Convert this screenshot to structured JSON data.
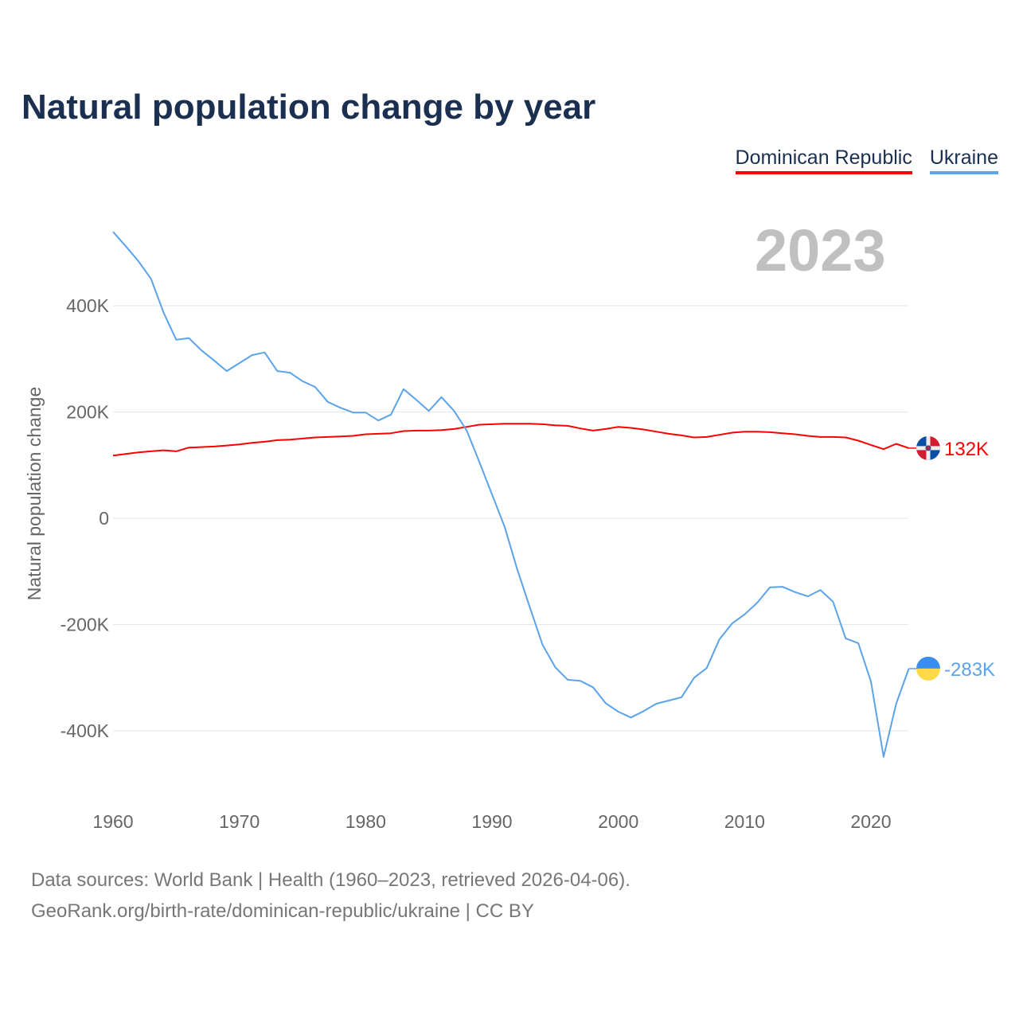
{
  "title": "Natural population change by year",
  "legend": [
    "Dominican Republic",
    "Ukraine"
  ],
  "current_year": "2023",
  "footer": {
    "line1": "Data sources: World Bank | Health (1960–2023, retrieved 2026-04-06).",
    "line2": "GeoRank.org/birth-rate/dominican-republic/ukraine | CC BY"
  },
  "chart_data": {
    "type": "line",
    "title": "Natural population change by year",
    "xlabel": "",
    "ylabel": "Natural population change",
    "xlim": [
      1960,
      2023
    ],
    "ylim": [
      -500000,
      560000
    ],
    "yticks": [
      400000,
      200000,
      0,
      -200000,
      -400000
    ],
    "ytick_labels": [
      "400K",
      "200K",
      "0",
      "-200K",
      "-400K"
    ],
    "xticks": [
      1960,
      1970,
      1980,
      1990,
      2000,
      2010,
      2020
    ],
    "xtick_labels": [
      "1960",
      "1970",
      "1980",
      "1990",
      "2000",
      "2010",
      "2020"
    ],
    "grid": true,
    "legend_position": "top-right",
    "x": [
      1960,
      1961,
      1962,
      1963,
      1964,
      1965,
      1966,
      1967,
      1968,
      1969,
      1970,
      1971,
      1972,
      1973,
      1974,
      1975,
      1976,
      1977,
      1978,
      1979,
      1980,
      1981,
      1982,
      1983,
      1984,
      1985,
      1986,
      1987,
      1988,
      1989,
      1990,
      1991,
      1992,
      1993,
      1994,
      1995,
      1996,
      1997,
      1998,
      1999,
      2000,
      2001,
      2002,
      2003,
      2004,
      2005,
      2006,
      2007,
      2008,
      2009,
      2010,
      2011,
      2012,
      2013,
      2014,
      2015,
      2016,
      2017,
      2018,
      2019,
      2020,
      2021,
      2022,
      2023
    ],
    "series": [
      {
        "name": "Dominican Republic",
        "color": "#ff0000",
        "end_label": "132K",
        "flag": "dominican-republic-flag",
        "values": [
          118000,
          121000,
          124000,
          126000,
          128000,
          126000,
          133000,
          134000,
          135000,
          137000,
          139000,
          142000,
          144000,
          147000,
          148000,
          150000,
          152000,
          153000,
          154000,
          155000,
          158000,
          159000,
          160000,
          164000,
          165000,
          165000,
          166000,
          168000,
          172000,
          176000,
          177000,
          178000,
          178000,
          178000,
          177000,
          175000,
          174000,
          169000,
          165000,
          168000,
          172000,
          170000,
          167000,
          163000,
          159000,
          156000,
          152000,
          153000,
          157000,
          161000,
          163000,
          163000,
          162000,
          160000,
          158000,
          155000,
          153000,
          153000,
          152000,
          146000,
          138000,
          130000,
          140000,
          132000
        ]
      },
      {
        "name": "Ukraine",
        "color": "#5ba3ea",
        "end_label": "-283K",
        "flag": "ukraine-flag",
        "values": [
          539000,
          512000,
          484000,
          451000,
          387000,
          336000,
          339000,
          316000,
          297000,
          277000,
          292000,
          307000,
          312000,
          277000,
          274000,
          258000,
          247000,
          219000,
          208000,
          199000,
          199000,
          184000,
          195000,
          243000,
          223000,
          202000,
          228000,
          202000,
          165000,
          106000,
          45000,
          -16000,
          -96000,
          -168000,
          -238000,
          -280000,
          -304000,
          -306000,
          -318000,
          -348000,
          -364000,
          -375000,
          -363000,
          -349000,
          -343000,
          -337000,
          -300000,
          -282000,
          -228000,
          -198000,
          -181000,
          -159000,
          -130000,
          -129000,
          -139000,
          -147000,
          -135000,
          -157000,
          -226000,
          -235000,
          -307000,
          -449000,
          -349000,
          -283000
        ]
      }
    ]
  }
}
